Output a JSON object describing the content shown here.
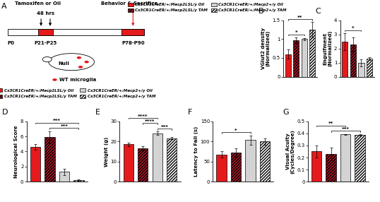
{
  "groups": [
    {
      "name": "Cx3CR1CreER/+;Mecp2LSL/y Oil",
      "color": "#e41a1c"
    },
    {
      "name": "Cx3CR1CreER/+;Mecp2LSL/y TAM",
      "color": "#b2182b"
    },
    {
      "name": "Cx3CR1CreER/+;Mecp2+/y Oil",
      "color": "#d3d3d3"
    },
    {
      "name": "Cx3CR1CreER/+;Mecp2+/y TAM",
      "color": "#ffffff"
    }
  ],
  "diagram": {
    "label": "A",
    "treatment": "Tamoxifen or Oil",
    "interval": "48 hrs",
    "endpoint": "Behavior & Sacrifice",
    "ages": [
      "P0",
      "P21-P25",
      "P78-P90"
    ],
    "mouse": "Null",
    "cells": "WT microglia"
  },
  "chart_data": [
    {
      "type": "bar",
      "panel": "B",
      "y_label": "VGlut2 density\n(Normalized)",
      "categories": [
        "Cx3CR1CreER/+;Mecp2LSL/y Oil",
        "Cx3CR1CreER/+;Mecp2LSL/y TAM",
        "Cx3CR1CreER/+;Mecp2+/y Oil",
        "Cx3CR1CreER/+;Mecp2+/y TAM"
      ],
      "values": [
        0.6,
        0.97,
        1.0,
        1.25
      ],
      "errors": [
        0.12,
        0.08,
        0.03,
        0.2
      ],
      "colors": [
        "#e41a1c",
        "#b2182b",
        "#d3d3d3",
        "#ffffff"
      ],
      "ylim": [
        0,
        1.5
      ],
      "yticks": [
        0,
        0.5,
        1,
        1.5
      ],
      "tick_labels": "y",
      "significance": [
        {
          "pair": [
            0,
            2
          ],
          "label": "*"
        },
        {
          "pair": [
            0,
            3
          ],
          "label": "**"
        }
      ]
    },
    {
      "type": "bar",
      "panel": "C",
      "y_label": "Engulfment\n(Normalized)",
      "categories": [
        "Cx3CR1CreER/+;Mecp2LSL/y Oil",
        "Cx3CR1CreER/+;Mecp2LSL/y TAM",
        "Cx3CR1CreER/+;Mecp2+/y Oil",
        "Cx3CR1CreER/+;Mecp2+/y TAM"
      ],
      "values": [
        2.5,
        2.3,
        1.0,
        1.3
      ],
      "errors": [
        0.6,
        0.5,
        0.25,
        0.1
      ],
      "colors": [
        "#e41a1c",
        "#b2182b",
        "#d3d3d3",
        "#ffffff"
      ],
      "ylim": [
        0,
        4
      ],
      "yticks": [
        0,
        1,
        2,
        3,
        4
      ],
      "tick_labels": "y",
      "significance": [
        {
          "pair": [
            0,
            2
          ],
          "label": "*"
        }
      ]
    },
    {
      "type": "bar",
      "panel": "D",
      "y_label": "Neurological Score",
      "categories": [
        "Cx3CR1CreER/+;Mecp2LSL/y Oil",
        "Cx3CR1CreER/+;Mecp2LSL/y TAM",
        "Cx3CR1CreER/+;Mecp2+/y Oil",
        "Cx3CR1CreER/+;Mecp2+/y TAM"
      ],
      "values": [
        4.6,
        5.9,
        1.3,
        0.2
      ],
      "errors": [
        0.4,
        0.8,
        0.4,
        0.1
      ],
      "colors": [
        "#e41a1c",
        "#b2182b",
        "#d3d3d3",
        "#ffffff"
      ],
      "ylim": [
        0,
        8
      ],
      "yticks": [
        0,
        2,
        4,
        6,
        8
      ],
      "tick_labels": "y",
      "significance": [
        {
          "pair": [
            1,
            3
          ],
          "label": "***"
        },
        {
          "pair": [
            0,
            3
          ],
          "label": "***"
        }
      ]
    },
    {
      "type": "bar",
      "panel": "E",
      "y_label": "Weight (g)",
      "categories": [
        "Cx3CR1CreER/+;Mecp2LSL/y Oil",
        "Cx3CR1CreER/+;Mecp2LSL/y TAM",
        "Cx3CR1CreER/+;Mecp2+/y Oil",
        "Cx3CR1CreER/+;Mecp2+/y TAM"
      ],
      "values": [
        18.5,
        16.5,
        24.0,
        21.5
      ],
      "errors": [
        0.8,
        1.0,
        0.8,
        0.5
      ],
      "colors": [
        "#e41a1c",
        "#b2182b",
        "#d3d3d3",
        "#ffffff"
      ],
      "ylim": [
        0,
        30
      ],
      "yticks": [
        0,
        10,
        20,
        30
      ],
      "tick_labels": "y",
      "significance": [
        {
          "pair": [
            2,
            3
          ],
          "label": "***"
        },
        {
          "pair": [
            1,
            2
          ],
          "label": "****"
        },
        {
          "pair": [
            0,
            2
          ],
          "label": "****"
        }
      ]
    },
    {
      "type": "bar",
      "panel": "F",
      "y_label": "Latency to Fall (s)",
      "categories": [
        "Cx3CR1CreER/+;Mecp2LSL/y Oil",
        "Cx3CR1CreER/+;Mecp2LSL/y TAM",
        "Cx3CR1CreER/+;Mecp2+/y Oil",
        "Cx3CR1CreER/+;Mecp2+/y TAM"
      ],
      "values": [
        68,
        72,
        103,
        100
      ],
      "errors": [
        8,
        10,
        12,
        8
      ],
      "colors": [
        "#e41a1c",
        "#b2182b",
        "#d3d3d3",
        "#ffffff"
      ],
      "ylim": [
        0,
        150
      ],
      "yticks": [
        0,
        50,
        100,
        150
      ],
      "tick_labels": "y",
      "significance": [
        {
          "pair": [
            0,
            2
          ],
          "label": "*"
        }
      ]
    },
    {
      "type": "bar",
      "panel": "G",
      "y_label": "Visual Acuity\n(Cycles/Degree)",
      "categories": [
        "Cx3CR1CreER/+;Mecp2LSL/y Oil",
        "Cx3CR1CreER/+;Mecp2LSL/y TAM",
        "Cx3CR1CreER/+;Mecp2+/y Oil",
        "Cx3CR1CreER/+;Mecp2+/y TAM"
      ],
      "values": [
        0.25,
        0.23,
        0.39,
        0.385
      ],
      "errors": [
        0.05,
        0.05,
        0.005,
        0.005
      ],
      "colors": [
        "#e41a1c",
        "#b2182b",
        "#d3d3d3",
        "#ffffff"
      ],
      "ylim": [
        0,
        0.5
      ],
      "yticks": [
        0,
        0.1,
        0.2,
        0.3,
        0.4,
        0.5
      ],
      "tick_labels": "y",
      "significance": [
        {
          "pair": [
            1,
            3
          ],
          "label": "***"
        },
        {
          "pair": [
            0,
            2
          ],
          "label": "**"
        }
      ]
    }
  ]
}
